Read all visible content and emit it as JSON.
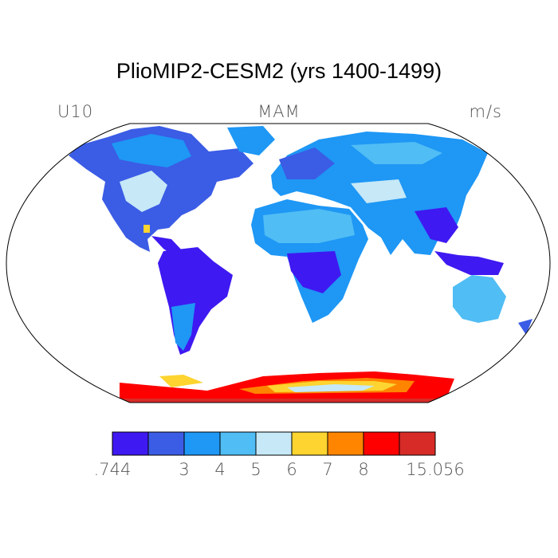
{
  "title": "PlioMIP2-CESM2 (yrs 1400-1499)",
  "variable": "U10",
  "season": "MAM",
  "units": "m/s",
  "projection": "Robinson",
  "colorbar": {
    "colors": [
      "#3f19f1",
      "#3b5ce5",
      "#1e97f5",
      "#50bdf4",
      "#c6e8f7",
      "#fdd430",
      "#ff8500",
      "#fe0000",
      "#d72b27"
    ],
    "tick_labels": [
      ".744",
      "3",
      "4",
      "5",
      "6",
      "7",
      "8",
      "15.056"
    ]
  },
  "regions": [
    {
      "name": "North America",
      "class": 1,
      "color": "#3b5ce5"
    },
    {
      "name": "South America",
      "class": 0,
      "color": "#3f19f1"
    },
    {
      "name": "Africa (central)",
      "class": 0,
      "color": "#3f19f1"
    },
    {
      "name": "Sahara",
      "class": 3,
      "color": "#50bdf4"
    },
    {
      "name": "Eurasia",
      "class": 2,
      "color": "#1e97f5"
    },
    {
      "name": "Australia",
      "class": 3,
      "color": "#50bdf4"
    },
    {
      "name": "Antarctica coast",
      "class": 7,
      "color": "#fe0000"
    }
  ]
}
